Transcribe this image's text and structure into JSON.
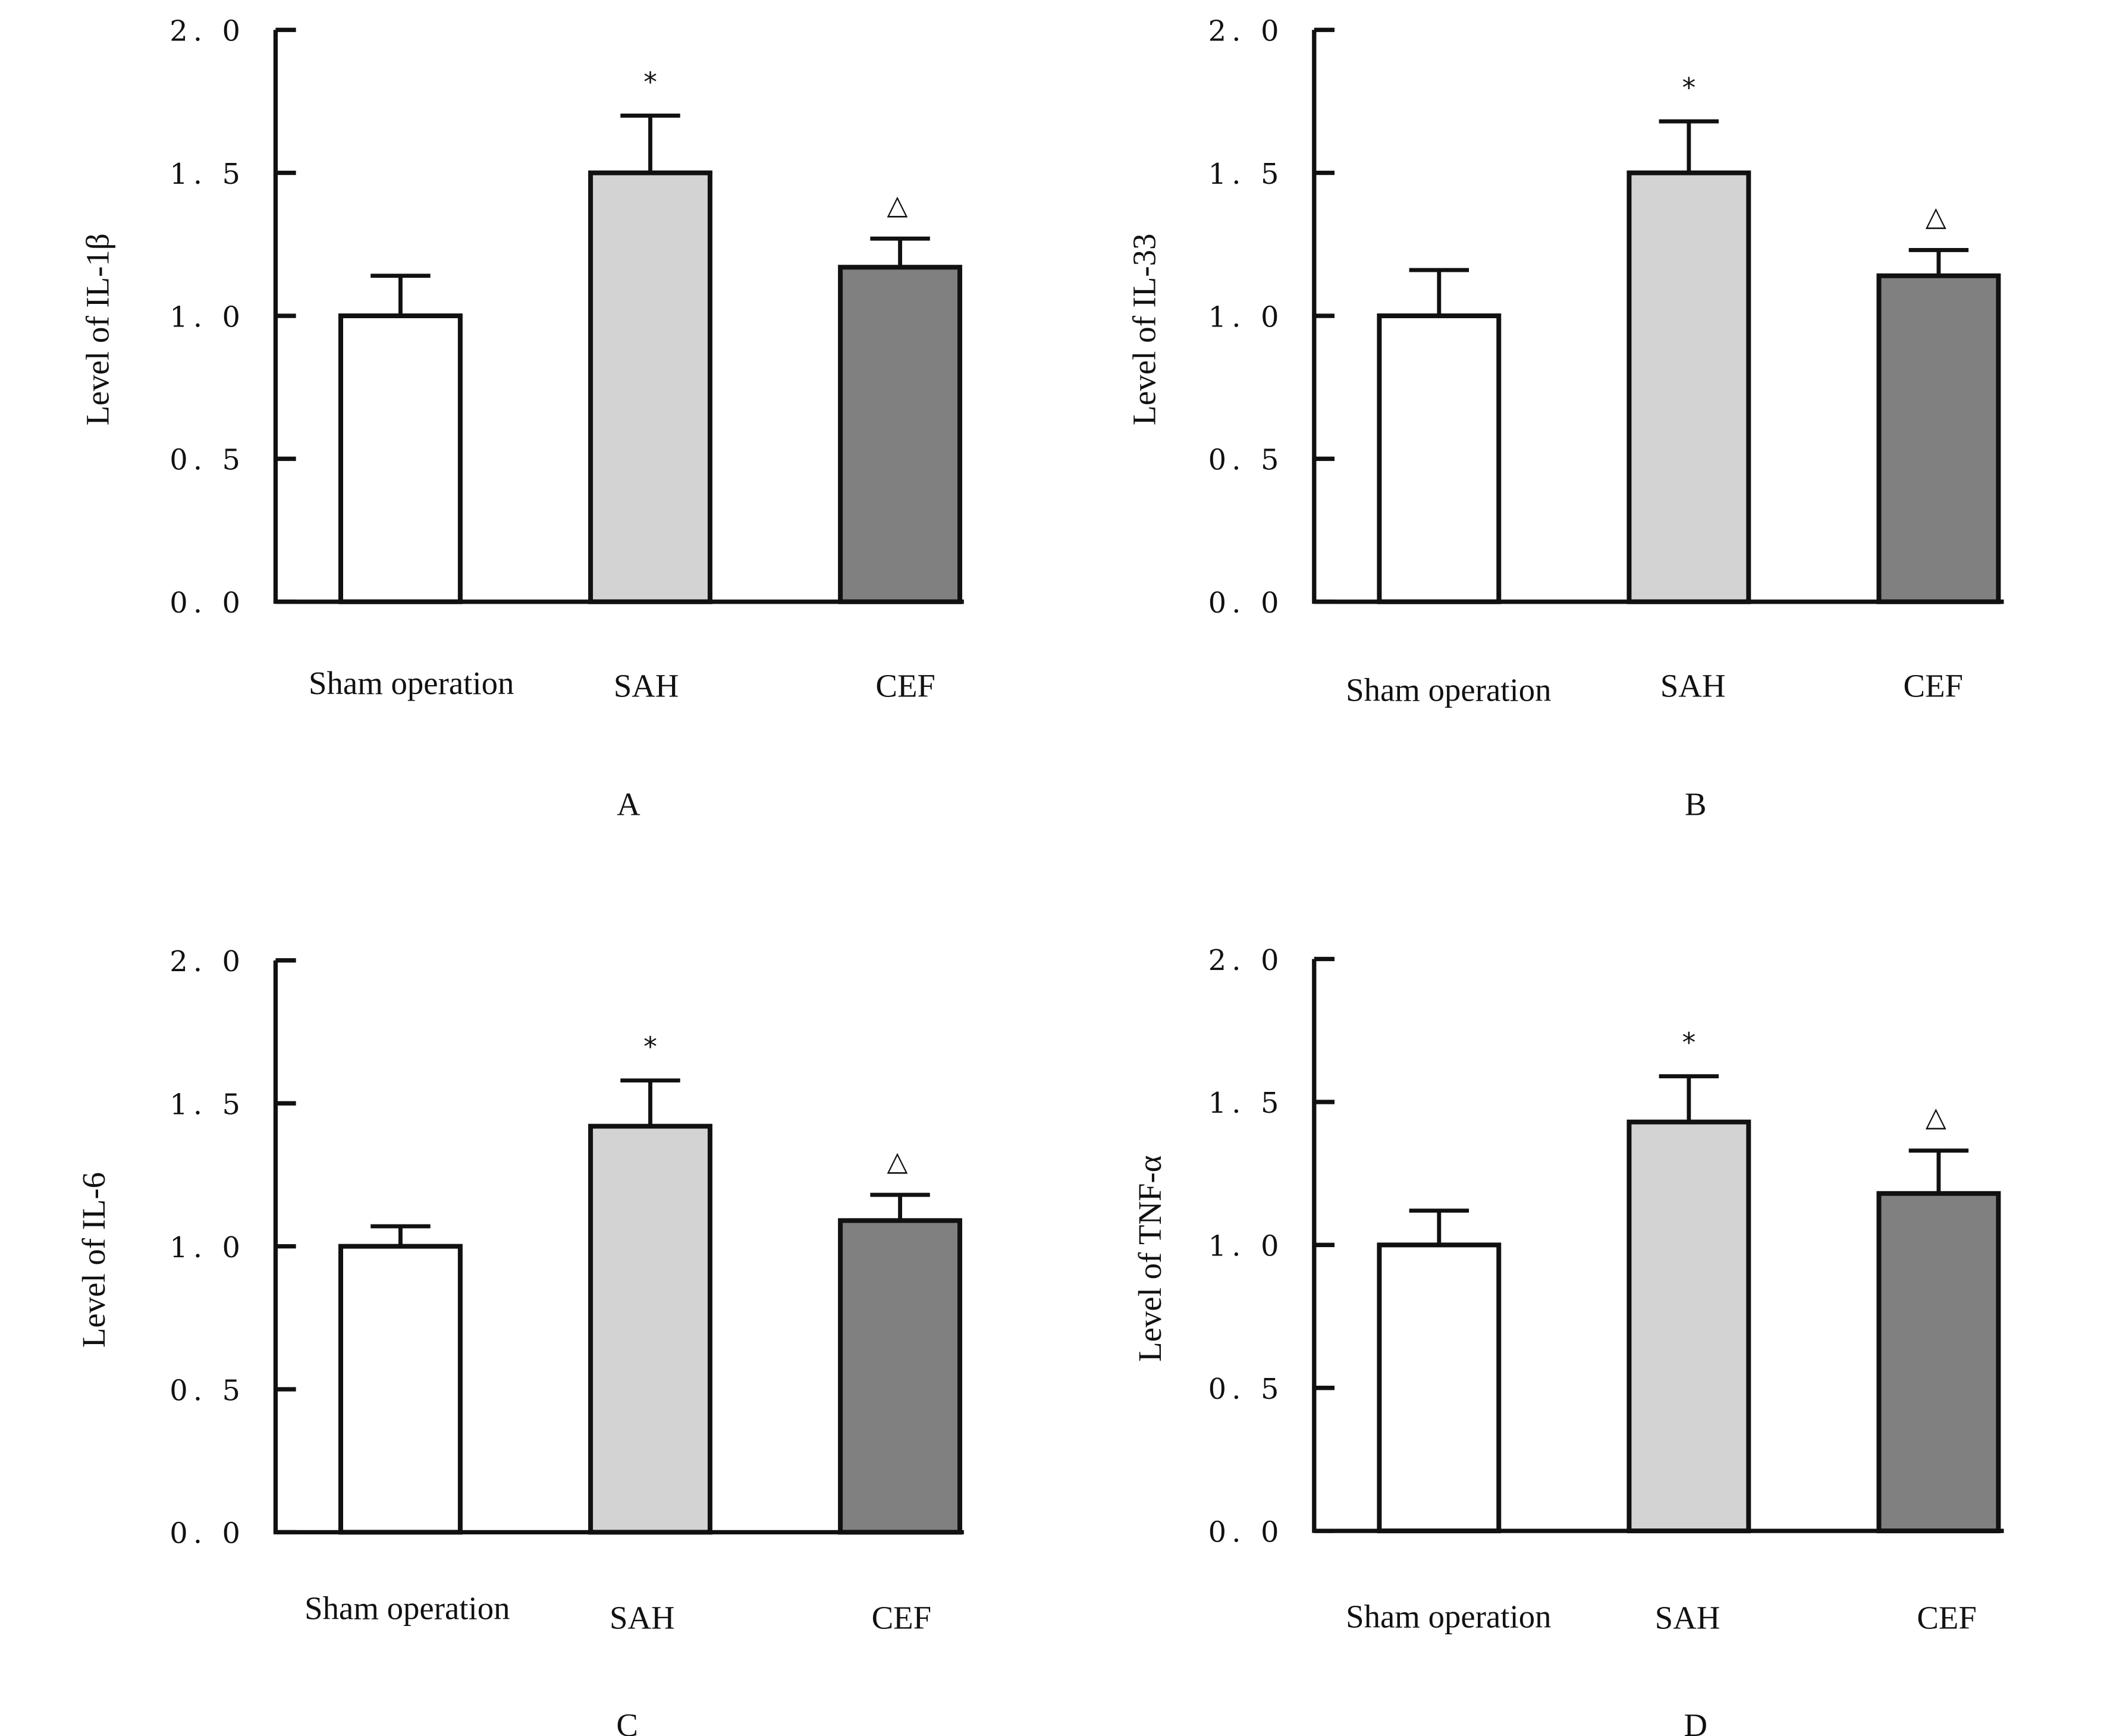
{
  "chart_data": [
    {
      "type": "bar",
      "panel": "A",
      "ylabel": "Level of IL-1β",
      "xlabel": "",
      "categories": [
        "Sham operation",
        "SAH",
        "CEF"
      ],
      "values": [
        1.0,
        1.5,
        1.17
      ],
      "error_upper": [
        0.14,
        0.2,
        0.1
      ],
      "annotations": [
        "",
        "*",
        "△"
      ],
      "yticks": [
        "0. 0",
        "0. 5",
        "1. 0",
        "1. 5",
        "2. 0"
      ],
      "ylim": [
        0,
        2.0
      ],
      "grid": false
    },
    {
      "type": "bar",
      "panel": "B",
      "ylabel": "Level of IL-33",
      "xlabel": "",
      "categories": [
        "Sham operation",
        "SAH",
        "CEF"
      ],
      "values": [
        1.0,
        1.5,
        1.14
      ],
      "error_upper": [
        0.16,
        0.18,
        0.09
      ],
      "annotations": [
        "",
        "*",
        "△"
      ],
      "yticks": [
        "0. 0",
        "0. 5",
        "1. 0",
        "1. 5",
        "2. 0"
      ],
      "ylim": [
        0,
        2.0
      ],
      "grid": false
    },
    {
      "type": "bar",
      "panel": "C",
      "ylabel": "Level of IL-6",
      "xlabel": "",
      "categories": [
        "Sham operation",
        "SAH",
        "CEF"
      ],
      "values": [
        1.0,
        1.42,
        1.09
      ],
      "error_upper": [
        0.07,
        0.16,
        0.09
      ],
      "annotations": [
        "",
        "*",
        "△"
      ],
      "yticks": [
        "0. 0",
        "0. 5",
        "1. 0",
        "1. 5",
        "2. 0"
      ],
      "ylim": [
        0,
        2.0
      ],
      "grid": false
    },
    {
      "type": "bar",
      "panel": "D",
      "ylabel": "Level of TNF-α",
      "xlabel": "",
      "categories": [
        "Sham operation",
        "SAH",
        "CEF"
      ],
      "values": [
        1.0,
        1.43,
        1.18
      ],
      "error_upper": [
        0.12,
        0.16,
        0.15
      ],
      "annotations": [
        "",
        "*",
        "△"
      ],
      "yticks": [
        "0. 0",
        "0. 5",
        "1. 0",
        "1. 5",
        "2. 0"
      ],
      "ylim": [
        0,
        2.0
      ],
      "grid": false
    }
  ],
  "colors": {
    "bars": [
      "#ffffff",
      "#d3d3d3",
      "#808080"
    ],
    "outline": "#111111"
  }
}
